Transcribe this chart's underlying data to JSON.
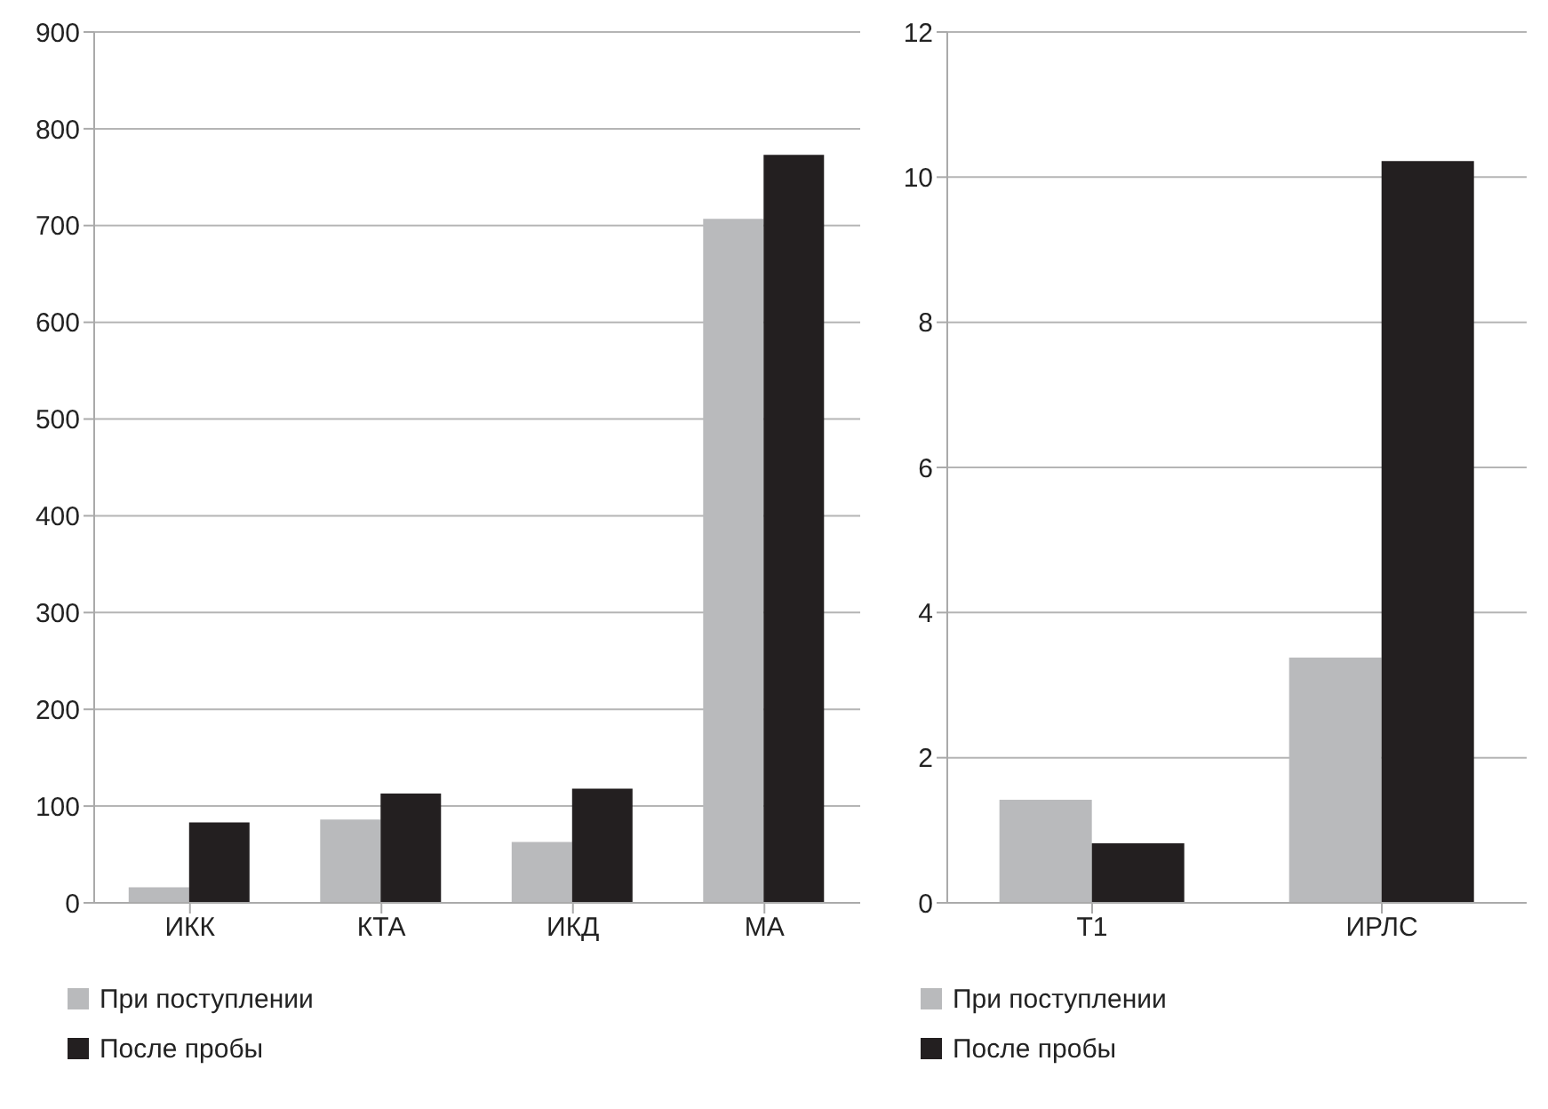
{
  "chart_data": [
    {
      "type": "bar",
      "categories": [
        "ИКК",
        "КТА",
        "ИКД",
        "МА"
      ],
      "series": [
        {
          "name": "При поступлении",
          "color": "#b9babc",
          "values": [
            16,
            86,
            63,
            707
          ]
        },
        {
          "name": "После пробы",
          "color": "#231f20",
          "values": [
            83,
            113,
            118,
            773
          ]
        }
      ],
      "ylim": [
        0,
        900
      ],
      "yticks": [
        0,
        100,
        200,
        300,
        400,
        500,
        600,
        700,
        800,
        900
      ],
      "grid": "y",
      "legend": "bottom left"
    },
    {
      "type": "bar",
      "categories": [
        "T1",
        "ИРЛС"
      ],
      "series": [
        {
          "name": "При поступлении",
          "color": "#b9babc",
          "values": [
            1.42,
            3.38
          ]
        },
        {
          "name": "После пробы",
          "color": "#231f20",
          "values": [
            0.82,
            10.22
          ]
        }
      ],
      "ylim": [
        0,
        12
      ],
      "yticks": [
        0,
        2,
        4,
        6,
        8,
        10,
        12
      ],
      "grid": "y",
      "legend": "bottom left"
    }
  ]
}
